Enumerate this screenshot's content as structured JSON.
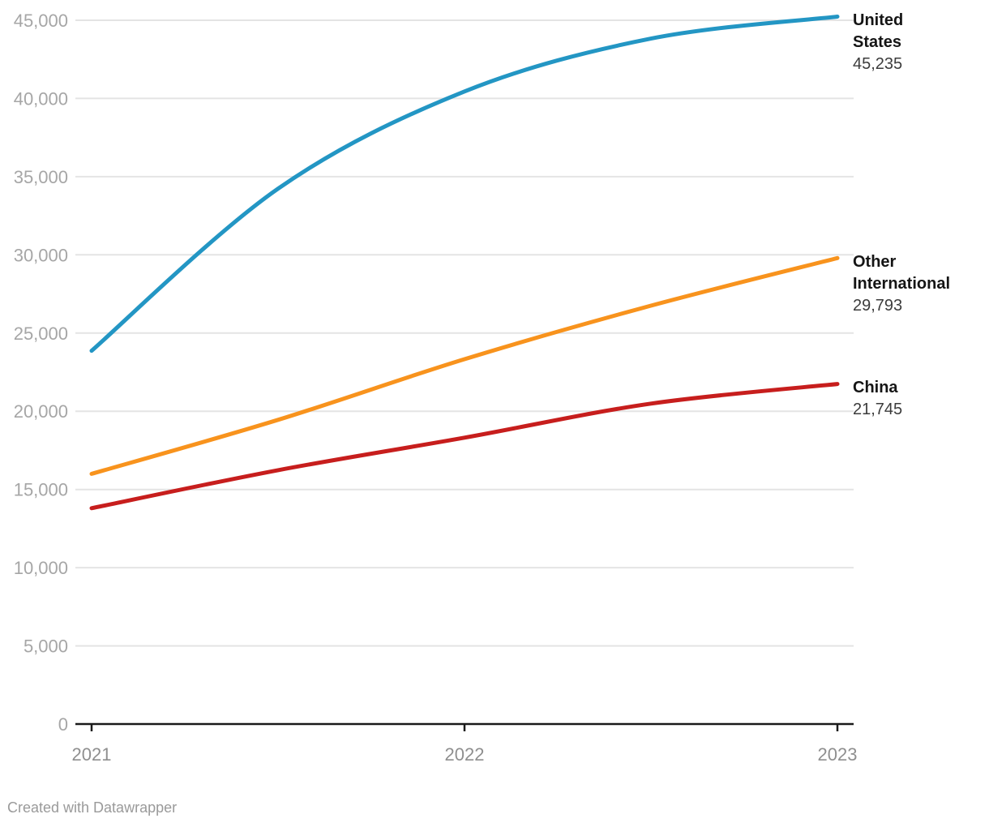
{
  "attribution_note": "Created with Datawrapper",
  "chart_data": {
    "type": "line",
    "title": "",
    "xlabel": "",
    "ylabel": "",
    "xlim": [
      2021,
      2023
    ],
    "ylim": [
      0,
      45000
    ],
    "grid": true,
    "legend_position": "right-edge-direct-labels",
    "x": [
      2021,
      2021.5,
      2022,
      2022.5,
      2023
    ],
    "x_tick_years": [
      2021,
      2022,
      2023
    ],
    "x_tick_labels": [
      "2021",
      "2022",
      "2023"
    ],
    "y_ticks": [
      {
        "value": 45000,
        "label": "45,000"
      },
      {
        "value": 40000,
        "label": "40,000"
      },
      {
        "value": 35000,
        "label": "35,000"
      },
      {
        "value": 30000,
        "label": "30,000"
      },
      {
        "value": 25000,
        "label": "25,000"
      },
      {
        "value": 20000,
        "label": "20,000"
      },
      {
        "value": 15000,
        "label": "15,000"
      },
      {
        "value": 10000,
        "label": "10,000"
      },
      {
        "value": 5000,
        "label": "5,000"
      },
      {
        "value": 0,
        "label": "0"
      }
    ],
    "series": [
      {
        "name": "United States",
        "label_lines": [
          "United",
          "States"
        ],
        "end_value": 45235,
        "end_value_label": "45,235",
        "color": "#2396c4",
        "values": [
          23870,
          34230,
          40450,
          43830,
          45235
        ]
      },
      {
        "name": "Other International",
        "label_lines": [
          "Other",
          "International"
        ],
        "end_value": 29793,
        "end_value_label": "29,793",
        "color": "#f8931d",
        "values": [
          16000,
          19450,
          23330,
          26750,
          29793
        ]
      },
      {
        "name": "China",
        "label_lines": [
          "China"
        ],
        "end_value": 21745,
        "end_value_label": "21,745",
        "color": "#c71e1d",
        "values": [
          13800,
          16230,
          18310,
          20490,
          21745
        ]
      }
    ],
    "attribution": "Created with Datawrapper"
  }
}
